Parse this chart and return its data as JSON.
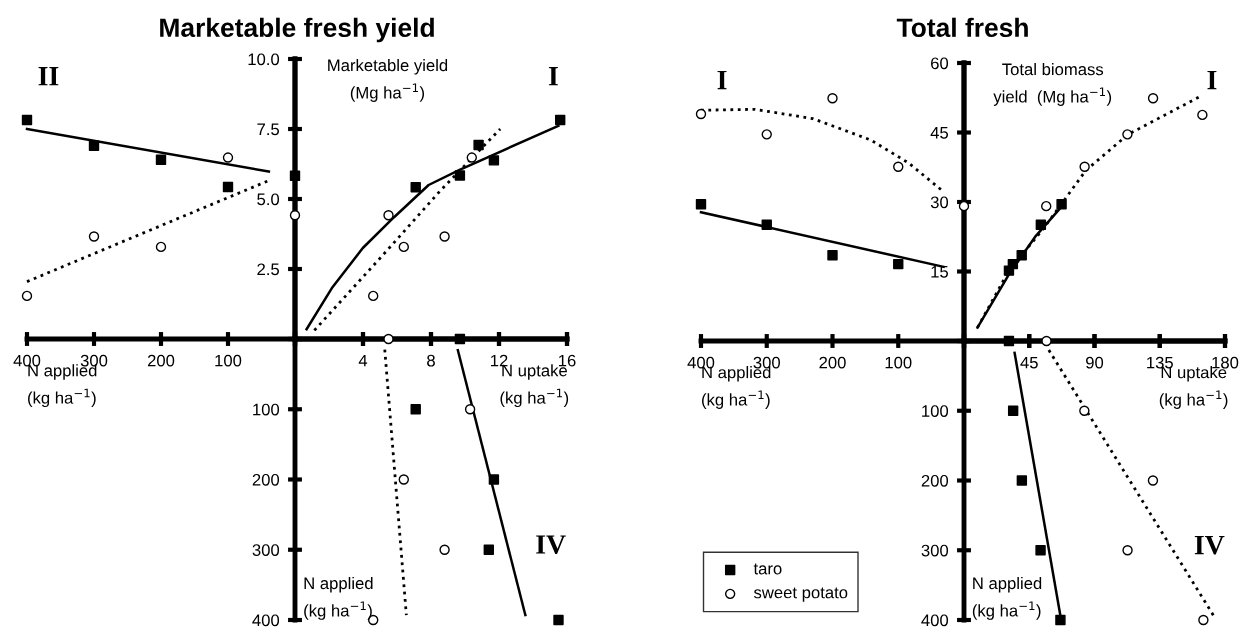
{
  "chart_data": [
    {
      "type": "scatter",
      "title": "Marketable fresh yield",
      "xlabel": "N applied\n(kg ha$^{−1}$)",
      "annotations": [
        "II"
      ],
      "xlim": [
        400,
        0
      ],
      "ylim": [
        0,
        10
      ],
      "xticks": [
        400,
        300,
        200,
        100,
        {
          "value": 0,
          "label": null
        }
      ],
      "tick_labels": "x",
      "grid": false,
      "legend": false,
      "series": [
        {
          "type": "scatter",
          "marker": "square",
          "color": "#000000",
          "x": [
            400,
            300,
            200,
            100,
            0
          ],
          "values": [
            7.82,
            6.9,
            6.4,
            5.43,
            5.83
          ]
        },
        {
          "type": "scatter",
          "marker": "circle",
          "color": "#000000",
          "x": [
            400,
            300,
            200,
            100,
            0
          ],
          "values": [
            1.54,
            3.66,
            3.29,
            6.48,
            4.42
          ]
        },
        {
          "type": "line",
          "line_style": "solid",
          "color": "#000000",
          "x": [
            400,
            39
          ],
          "values": [
            7.5,
            5.98
          ]
        },
        {
          "type": "line",
          "line_style": "dotted",
          "color": "#000000",
          "x": [
            400,
            39
          ],
          "values": [
            2.05,
            5.66
          ]
        }
      ]
    },
    {
      "type": "scatter",
      "xlabel": "N uptake\n(kg ha$^{−1}$)",
      "ylabel": "Marketable yield\n(Mg ha$^{−1}$)",
      "annotations": [
        "I"
      ],
      "xlim": [
        0,
        16
      ],
      "ylim": [
        0,
        10
      ],
      "xticks": [
        {
          "value": 0,
          "label": null
        },
        4,
        8,
        12,
        16
      ],
      "yticks": [
        {
          "value": 0,
          "label": null
        },
        {
          "value": 2.5,
          "label": "2.5"
        },
        {
          "value": 5,
          "label": "5.0"
        },
        {
          "value": 7.5,
          "label": "7.5"
        },
        {
          "value": 10,
          "label": "10.0"
        }
      ],
      "grid": false,
      "legend": false,
      "series": [
        {
          "type": "scatter",
          "marker": "square",
          "color": "#000000",
          "x": [
            7.1,
            9.7,
            10.8,
            11.7,
            15.6
          ],
          "values": [
            5.42,
            5.84,
            6.93,
            6.38,
            7.82
          ]
        },
        {
          "type": "scatter",
          "marker": "circle",
          "color": "#000000",
          "x": [
            4.6,
            5.5,
            6.4,
            8.8,
            10.4
          ],
          "values": [
            1.54,
            4.42,
            3.29,
            3.66,
            6.48
          ]
        },
        {
          "type": "line",
          "line_style": "solid",
          "color": "#000000",
          "x": [
            0.68,
            2.16,
            3.99,
            5.81,
            7.86,
            9.68,
            11.96,
            15.49
          ],
          "values": [
            0.35,
            1.81,
            3.25,
            4.34,
            5.5,
            6.04,
            6.66,
            7.61
          ]
        },
        {
          "type": "line",
          "line_style": "dotted",
          "color": "#000000",
          "x": [
            1.14,
            5.13,
            8.54,
            12.07
          ],
          "values": [
            0.31,
            2.97,
            5.29,
            7.5
          ]
        }
      ]
    },
    {
      "type": "scatter",
      "ylabel": "N applied\n(kg ha$^{−1}$)",
      "annotations": [
        "IV"
      ],
      "xlim": [
        0,
        16
      ],
      "ylim": [
        400,
        0
      ],
      "xticks": [
        {
          "value": 0,
          "label": null
        },
        {
          "value": 4,
          "label": null
        },
        {
          "value": 8,
          "label": null
        },
        {
          "value": 12,
          "label": null
        },
        {
          "value": 16,
          "label": null
        }
      ],
      "yticks": [
        {
          "value": 0,
          "label": null
        },
        100,
        200,
        300,
        400
      ],
      "tick_labels": "y",
      "grid": false,
      "legend": false,
      "series": [
        {
          "type": "scatter",
          "marker": "square",
          "color": "#000000",
          "x": [
            9.7,
            7.1,
            11.7,
            11.4,
            15.5
          ],
          "values": [
            0,
            100,
            200,
            300,
            400
          ]
        },
        {
          "type": "scatter",
          "marker": "circle",
          "color": "#000000",
          "x": [
            5.5,
            10.3,
            6.4,
            8.8,
            4.6
          ],
          "values": [
            0,
            100,
            200,
            300,
            400
          ]
        },
        {
          "type": "line",
          "line_style": "solid",
          "color": "#000000",
          "x": [
            9.58,
            13.55
          ],
          "values": [
            16,
            393
          ]
        },
        {
          "type": "line",
          "line_style": "dotted",
          "color": "#000000",
          "x": [
            5.28,
            6.55
          ],
          "values": [
            15,
            393
          ]
        }
      ]
    },
    {
      "type": "scatter",
      "title": "Total fresh",
      "xlabel": "N applied\n(kg ha$^{−1}$)",
      "annotations": [
        "I"
      ],
      "xlim": [
        400,
        0
      ],
      "ylim": [
        0,
        60
      ],
      "xticks": [
        400,
        300,
        200,
        100,
        {
          "value": 0,
          "label": null
        }
      ],
      "tick_labels": "x",
      "grid": false,
      "legend": false,
      "series": [
        {
          "type": "scatter",
          "marker": "square",
          "color": "#000000",
          "x": [
            400,
            300,
            200,
            100
          ],
          "values": [
            29.5,
            25.1,
            18.5,
            16.6
          ]
        },
        {
          "type": "scatter",
          "marker": "circle",
          "color": "#000000",
          "x": [
            400,
            300,
            200,
            100,
            0
          ],
          "values": [
            49.0,
            44.6,
            52.4,
            37.6,
            29.1
          ]
        },
        {
          "type": "line",
          "line_style": "solid",
          "color": "#000000",
          "x": [
            400,
            31
          ],
          "values": [
            27.8,
            16.0
          ]
        },
        {
          "type": "line",
          "line_style": "dotted",
          "color": "#000000",
          "x": [
            400,
            318,
            230,
            142,
            84,
            31
          ],
          "values": [
            49.8,
            50.0,
            48.0,
            43.4,
            38.4,
            32.2
          ]
        }
      ]
    },
    {
      "type": "scatter",
      "xlabel": "N uptake\n(kg ha$^{−1}$)",
      "ylabel": "Total biomass\nyield  (Mg ha$^{−1}$)",
      "annotations": [
        "I"
      ],
      "xlim": [
        0,
        180
      ],
      "ylim": [
        0,
        60
      ],
      "xticks": [
        {
          "value": 0,
          "label": null
        },
        45,
        90,
        135,
        180
      ],
      "yticks": [
        {
          "value": 0,
          "label": null
        },
        15,
        30,
        45,
        60
      ],
      "grid": false,
      "legend": false,
      "series": [
        {
          "type": "scatter",
          "marker": "square",
          "color": "#000000",
          "x": [
            31,
            33.7,
            39.8,
            53,
            67.3
          ],
          "values": [
            15.2,
            16.6,
            18.5,
            25.1,
            29.5
          ]
        },
        {
          "type": "scatter",
          "marker": "circle",
          "color": "#000000",
          "x": [
            56.7,
            83.2,
            112.7,
            130.4,
            164.4
          ],
          "values": [
            29.1,
            37.6,
            44.6,
            52.4,
            48.8
          ]
        },
        {
          "type": "line",
          "line_style": "solid",
          "color": "#000000",
          "x": [
            9.3,
            31,
            49.6,
            68.1
          ],
          "values": [
            2.9,
            14.4,
            22.7,
            29.3
          ]
        },
        {
          "type": "line",
          "line_style": "dotted",
          "color": "#000000",
          "x": [
            9.3,
            31,
            54.9,
            84,
            113.2,
            163.6
          ],
          "values": [
            2.9,
            15.2,
            24.3,
            36.8,
            44.6,
            52.9
          ]
        }
      ]
    },
    {
      "type": "scatter",
      "ylabel": "N applied\n(kg ha$^{−1}$)",
      "annotations": [
        "IV"
      ],
      "xlim": [
        0,
        180
      ],
      "ylim": [
        400,
        0
      ],
      "xticks": [
        {
          "value": 0,
          "label": null
        },
        {
          "value": 45,
          "label": null
        },
        {
          "value": 90,
          "label": null
        },
        {
          "value": 135,
          "label": null
        },
        {
          "value": 180,
          "label": null
        }
      ],
      "yticks": [
        {
          "value": 0,
          "label": null
        },
        100,
        200,
        300,
        400
      ],
      "tick_labels": "y",
      "grid": false,
      "legend": "left",
      "series": [
        {
          "type": "scatter",
          "name": "taro",
          "marker": "square",
          "color": "#000000",
          "x": [
            31,
            33.9,
            39.9,
            52.8,
            66.5
          ],
          "values": [
            0,
            100,
            200,
            300,
            400
          ]
        },
        {
          "type": "scatter",
          "name": "sweet potato",
          "marker": "circle",
          "color": "#000000",
          "x": [
            56.9,
            83,
            130.3,
            112.8,
            165.1
          ],
          "values": [
            0,
            100,
            200,
            300,
            400
          ]
        },
        {
          "type": "line",
          "line_style": "solid",
          "color": "#000000",
          "x": [
            34.9,
            67
          ],
          "values": [
            17,
            400
          ]
        },
        {
          "type": "line",
          "line_style": "dotted",
          "color": "#000000",
          "x": [
            58.5,
            172.5
          ],
          "values": [
            13,
            395
          ]
        }
      ]
    }
  ]
}
